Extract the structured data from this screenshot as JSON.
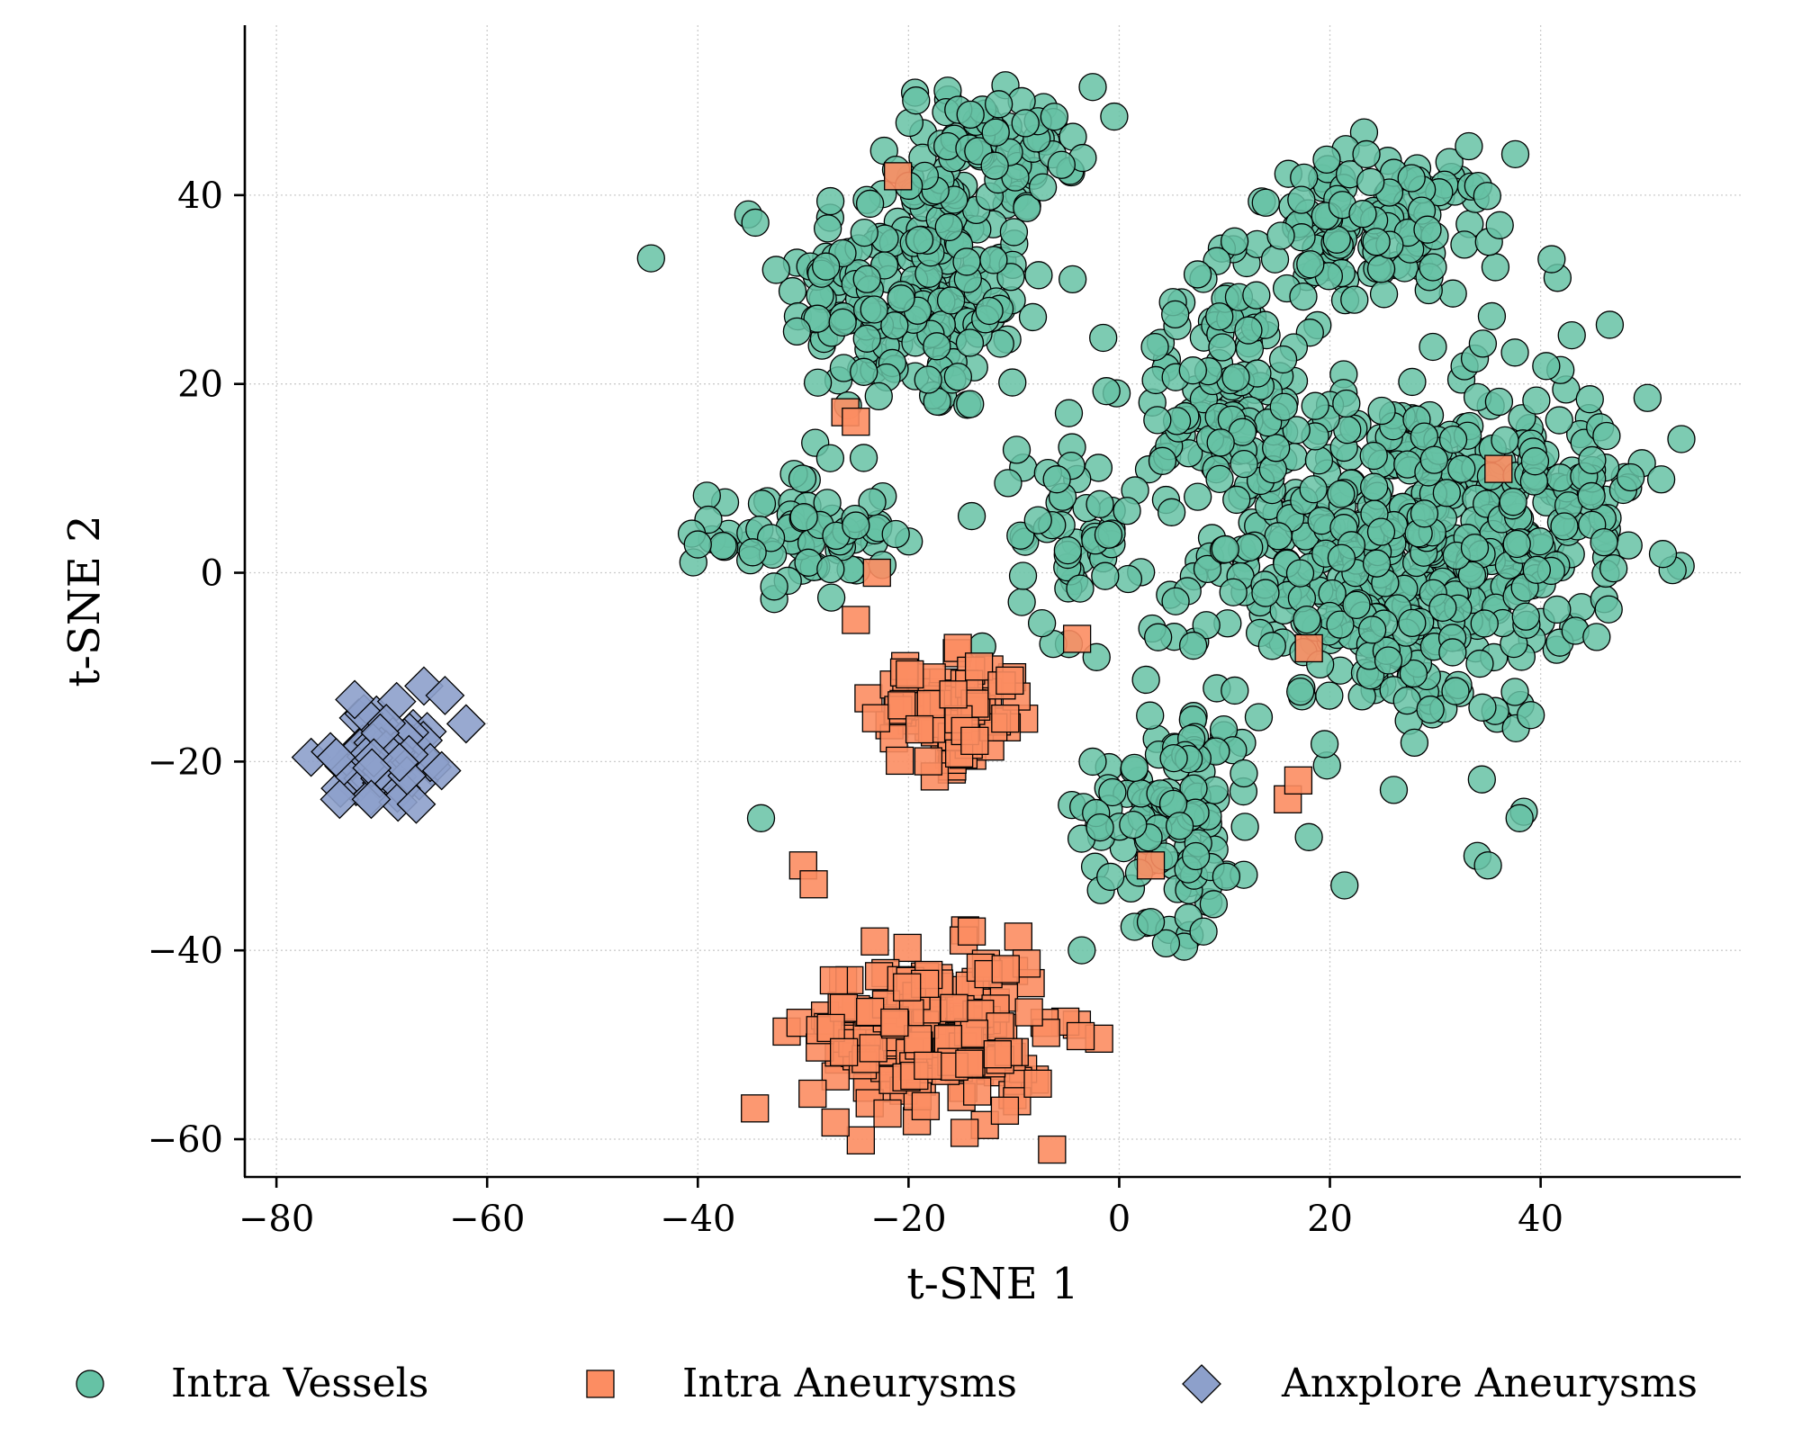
{
  "chart_data": {
    "type": "scatter",
    "title": "",
    "xlabel": "t-SNE 1",
    "ylabel": "t-SNE 2",
    "xlim": [
      -83,
      59
    ],
    "ylim": [
      -64,
      58
    ],
    "xticks": [
      -80,
      -60,
      -40,
      -20,
      0,
      20,
      40
    ],
    "yticks": [
      -60,
      -40,
      -20,
      0,
      20,
      40
    ],
    "xtick_labels": [
      "−80",
      "−60",
      "−40",
      "−20",
      "0",
      "20",
      "40"
    ],
    "ytick_labels": [
      "−60",
      "−40",
      "−20",
      "0",
      "20",
      "40"
    ],
    "grid": true,
    "legend_position": "bottom",
    "colors": {
      "intra_vessels": "#66c2a5",
      "intra_aneurysms": "#fc8d62",
      "anxplore_aneurysms": "#8da0cb",
      "edge": "#000000"
    },
    "series": [
      {
        "name": "Intra Vessels",
        "marker": "circle",
        "clusters": [
          {
            "center": [
              -19,
              30
            ],
            "spread": [
              9,
              10
            ],
            "count": 230
          },
          {
            "center": [
              -30,
              4
            ],
            "spread": [
              6,
              5
            ],
            "count": 70
          },
          {
            "center": [
              -12,
              46
            ],
            "spread": [
              7,
              4
            ],
            "count": 70
          },
          {
            "center": [
              24,
              36
            ],
            "spread": [
              9,
              6
            ],
            "count": 140
          },
          {
            "center": [
              26,
              2
            ],
            "spread": [
              13,
              13
            ],
            "count": 520
          },
          {
            "center": [
              10,
              20
            ],
            "spread": [
              6,
              8
            ],
            "count": 90
          },
          {
            "center": [
              5,
              -25
            ],
            "spread": [
              6,
              9
            ],
            "count": 110
          },
          {
            "center": [
              -4,
              4
            ],
            "spread": [
              4,
              8
            ],
            "count": 50
          },
          {
            "center": [
              42,
              10
            ],
            "spread": [
              6,
              9
            ],
            "count": 80
          }
        ],
        "points": [
          [
            -34,
            -26
          ],
          [
            8,
            -38
          ],
          [
            3,
            -37
          ],
          [
            34,
            -30
          ],
          [
            35,
            -31
          ],
          [
            -25,
            5
          ],
          [
            -14,
            6
          ],
          [
            -40,
            3
          ],
          [
            38,
            -26
          ],
          [
            18,
            -28
          ]
        ]
      },
      {
        "name": "Intra Aneurysms",
        "marker": "square",
        "clusters": [
          {
            "center": [
              -16,
              -15
            ],
            "spread": [
              5,
              4
            ],
            "count": 95
          },
          {
            "center": [
              -18,
              -49
            ],
            "spread": [
              8,
              6
            ],
            "count": 210
          }
        ],
        "points": [
          [
            -21,
            42
          ],
          [
            -26,
            17
          ],
          [
            -25,
            16
          ],
          [
            -23,
            0
          ],
          [
            -25,
            -5
          ],
          [
            -4,
            -7
          ],
          [
            18,
            -8
          ],
          [
            36,
            11
          ],
          [
            16,
            -24
          ],
          [
            17,
            -22
          ],
          [
            3,
            -31
          ],
          [
            -30,
            -31
          ],
          [
            -29,
            -33
          ],
          [
            -14,
            -38
          ]
        ]
      },
      {
        "name": "Anxplore Aneurysms",
        "marker": "diamond",
        "clusters": [
          {
            "center": [
              -70,
              -19
            ],
            "spread": [
              3.2,
              3.2
            ],
            "count": 70
          }
        ],
        "points": [
          [
            -66,
            -12
          ],
          [
            -64,
            -13
          ],
          [
            -74,
            -24
          ],
          [
            -71,
            -24
          ],
          [
            -62,
            -16
          ]
        ]
      }
    ]
  }
}
